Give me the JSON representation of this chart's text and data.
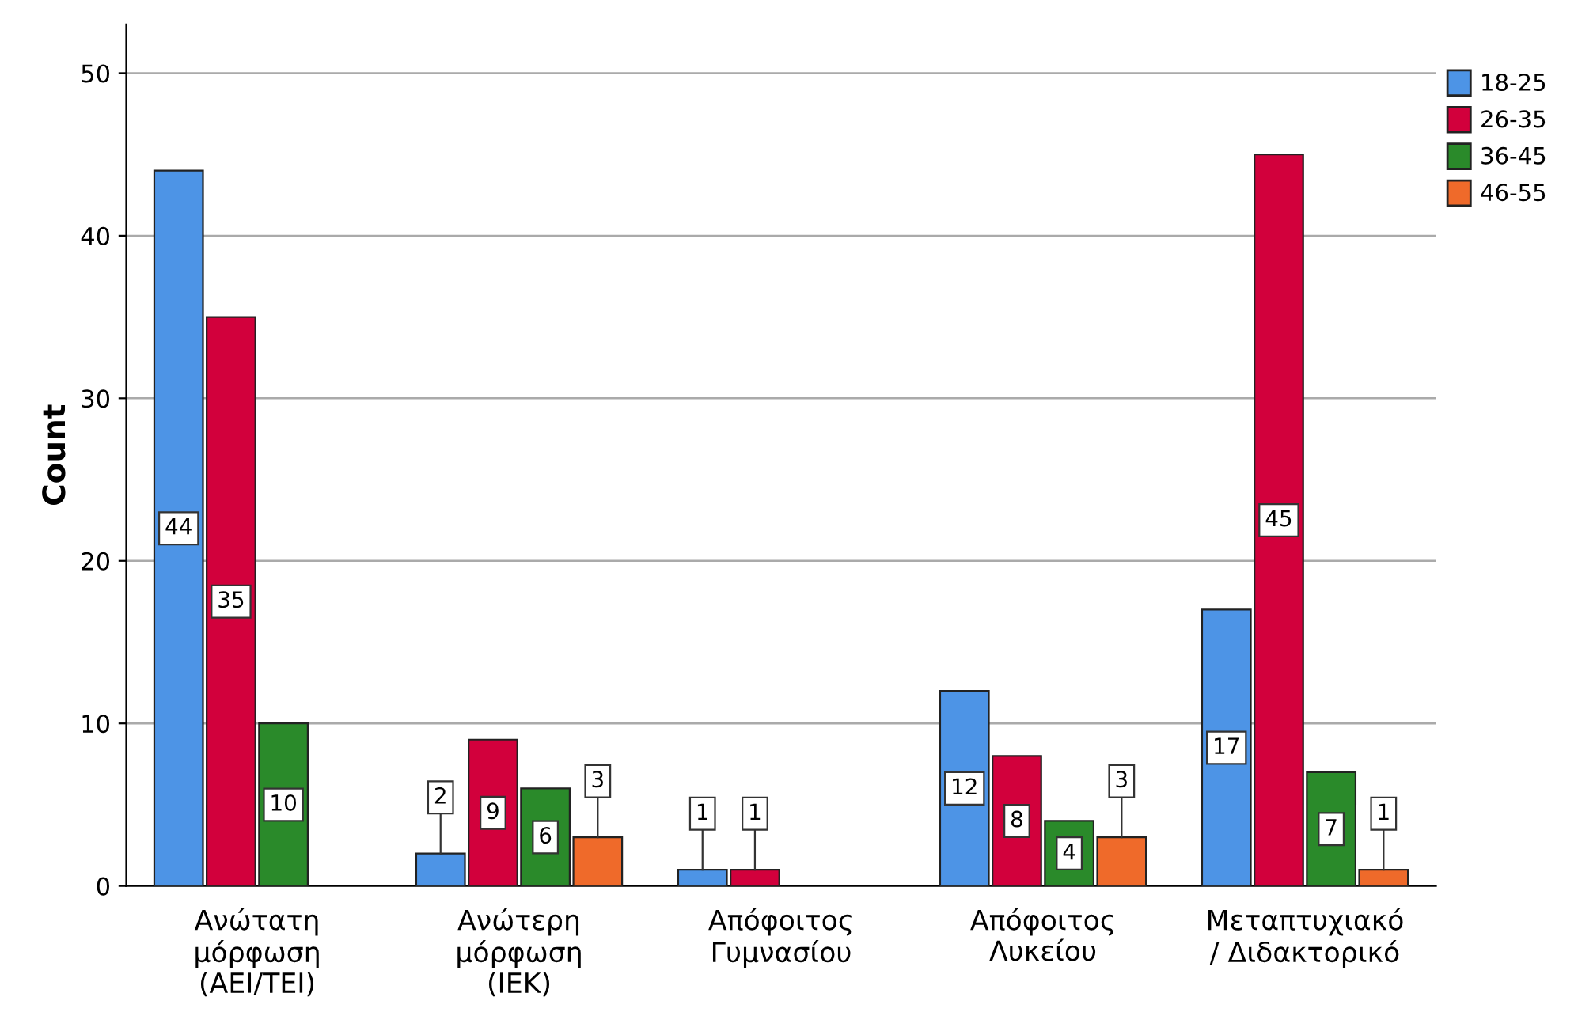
{
  "chart_data": {
    "type": "bar",
    "ylabel": "Count",
    "categories": [
      "Ανώτατη\nμόρφωση\n(ΑΕΙ/ΤΕΙ)",
      "Ανώτερη\nμόρφωση\n(ΙΕΚ)",
      "Απόφοιτος\nΓυμνασίου",
      "Απόφοιτος\nΛυκείου",
      "Μεταπτυχιακό\n/ Διδακτορικό"
    ],
    "series": [
      {
        "name": "18-25",
        "color": "#4d94e6",
        "values": [
          44,
          2,
          1,
          12,
          17
        ]
      },
      {
        "name": "26-35",
        "color": "#d2003c",
        "values": [
          35,
          9,
          1,
          8,
          45
        ]
      },
      {
        "name": "36-45",
        "color": "#2a8a2a",
        "values": [
          10,
          6,
          null,
          4,
          7
        ]
      },
      {
        "name": "46-55",
        "color": "#ef6a2a",
        "values": [
          null,
          3,
          null,
          3,
          1
        ]
      }
    ],
    "ylim": [
      0,
      53
    ],
    "yticks": [
      0,
      10,
      20,
      30,
      40,
      50
    ],
    "grid": "y",
    "legend": "top right",
    "data_labels": true
  }
}
